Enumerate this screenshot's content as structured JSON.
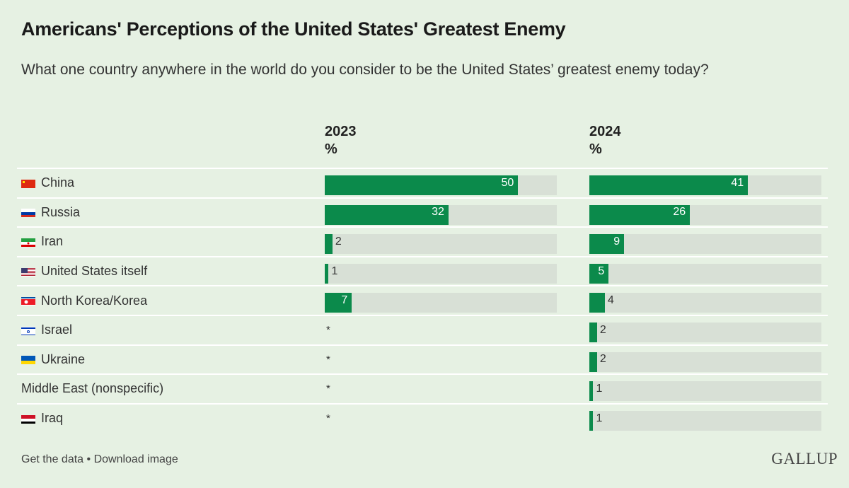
{
  "header": {
    "title": "Americans' Perceptions of the United States' Greatest Enemy",
    "subtitle": "What one country anywhere in the world do you consider to be the United States’ greatest enemy today?"
  },
  "columns": [
    {
      "year": "2023",
      "unit": "%"
    },
    {
      "year": "2024",
      "unit": "%"
    }
  ],
  "footer": {
    "get_data": "Get the data",
    "separator": " • ",
    "download": "Download image",
    "logo": "GALLUP"
  },
  "chart_data": {
    "type": "bar",
    "title": "Americans' Perceptions of the United States' Greatest Enemy",
    "subtitle": "What one country anywhere in the world do you consider to be the United States’ greatest enemy today?",
    "unit": "%",
    "xlim": [
      0,
      60
    ],
    "categories": [
      "China",
      "Russia",
      "Iran",
      "United States itself",
      "North Korea/Korea",
      "Israel",
      "Ukraine",
      "Middle East (nonspecific)",
      "Iraq"
    ],
    "flags": [
      "china",
      "russia",
      "iran",
      "usa",
      "north-korea",
      "israel",
      "ukraine",
      "",
      "iraq"
    ],
    "series": [
      {
        "name": "2023",
        "values": [
          50,
          32,
          2,
          1,
          7,
          null,
          null,
          null,
          null
        ],
        "labels": [
          "50",
          "32",
          "2",
          "1",
          "7",
          "*",
          "*",
          "*",
          "*"
        ]
      },
      {
        "name": "2024",
        "values": [
          41,
          26,
          9,
          5,
          4,
          2,
          2,
          1,
          1
        ],
        "labels": [
          "41",
          "26",
          "9",
          "5",
          "4",
          "2",
          "2",
          "1",
          "1"
        ]
      }
    ]
  }
}
